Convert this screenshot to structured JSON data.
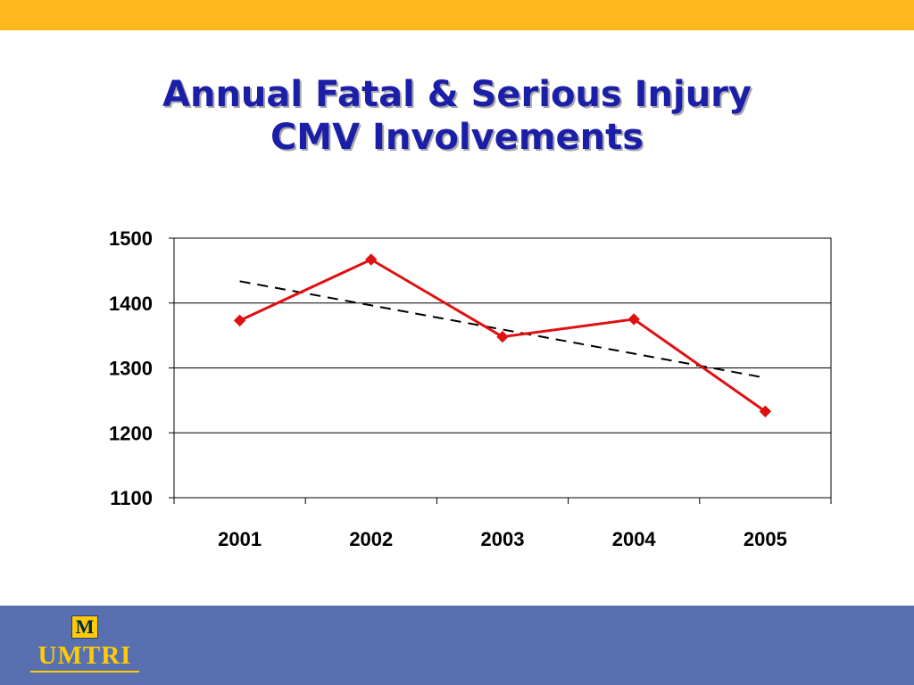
{
  "title_lines": [
    "Annual Fatal & Serious Injury",
    "CMV Involvements"
  ],
  "logo": {
    "mark": "M",
    "text": "UMTRI"
  },
  "colors": {
    "top_bar": "#ffb81c",
    "title": "#1b1fa8",
    "footer": "#5870b0",
    "series_line": "#e01010",
    "trend_line": "#000000",
    "logo_gold": "#ffcb05",
    "logo_navy": "#00274c"
  },
  "chart_data": {
    "type": "line",
    "title": "",
    "xlabel": "",
    "ylabel": "",
    "categories": [
      "2001",
      "2002",
      "2003",
      "2004",
      "2005"
    ],
    "series": [
      {
        "values": [
          1373,
          1467,
          1348,
          1375,
          1233
        ],
        "marker": "diamond"
      }
    ],
    "trendline": {
      "type": "linear",
      "style": "dashed"
    },
    "ylim": [
      1100,
      1500
    ],
    "yticks": [
      1100,
      1200,
      1300,
      1400,
      1500
    ],
    "grid": true,
    "legend": "none"
  }
}
